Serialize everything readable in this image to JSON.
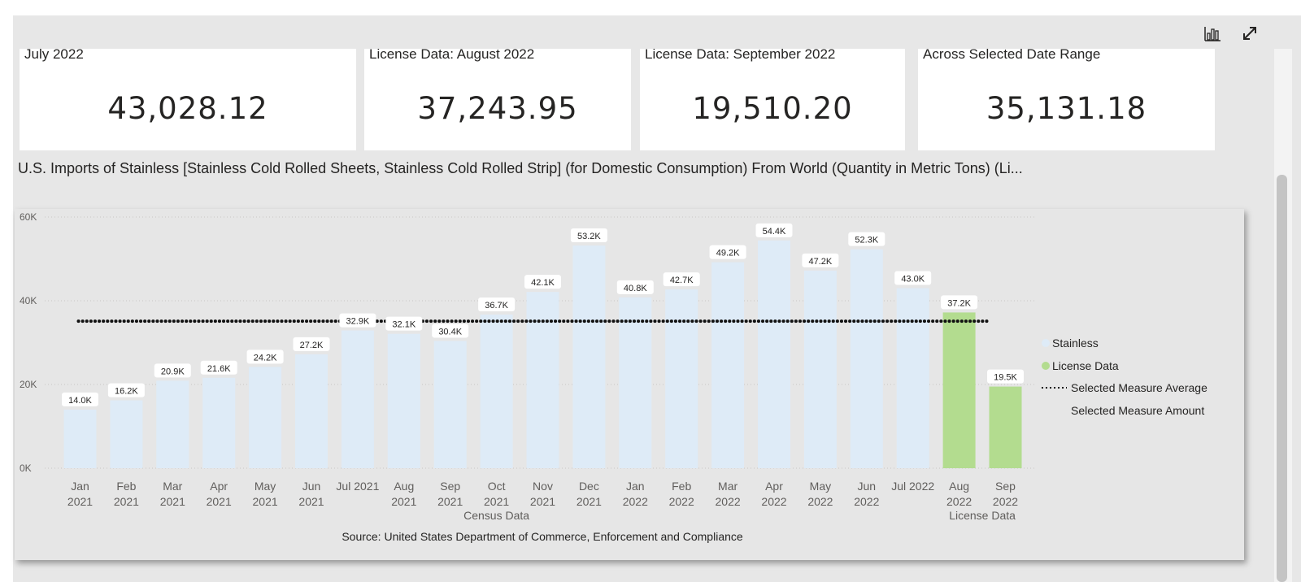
{
  "cards": [
    {
      "title": "July 2022",
      "value": "43,028.12"
    },
    {
      "title": "License Data: August 2022",
      "value": "37,243.95"
    },
    {
      "title": "License Data: September 2022",
      "value": "19,510.20"
    },
    {
      "title": "Across Selected Date Range",
      "value": "35,131.18"
    }
  ],
  "chart_title": "U.S. Imports of Stainless [Stainless Cold Rolled Sheets, Stainless Cold Rolled Strip]  (for Domestic Consumption) From World  (Quantity in Metric Tons) (Li...",
  "toolbar": {
    "icons": [
      "bar-chart-icon",
      "expand-icon"
    ]
  },
  "colors": {
    "stainless": "#deebf7",
    "license": "#b3dc8f",
    "average": "#111111",
    "canvas": "#e7e7e7"
  },
  "chart_data": {
    "type": "bar",
    "categories": [
      [
        "Jan",
        "2021"
      ],
      [
        "Feb",
        "2021"
      ],
      [
        "Mar",
        "2021"
      ],
      [
        "Apr",
        "2021"
      ],
      [
        "May",
        "2021"
      ],
      [
        "Jun",
        "2021"
      ],
      [
        "Jul 2021"
      ],
      [
        "Aug",
        "2021"
      ],
      [
        "Sep",
        "2021"
      ],
      [
        "Oct",
        "2021"
      ],
      [
        "Nov",
        "2021"
      ],
      [
        "Dec",
        "2021"
      ],
      [
        "Jan",
        "2022"
      ],
      [
        "Feb",
        "2022"
      ],
      [
        "Mar",
        "2022"
      ],
      [
        "Apr",
        "2022"
      ],
      [
        "May",
        "2022"
      ],
      [
        "Jun",
        "2022"
      ],
      [
        "Jul 2022"
      ],
      [
        "Aug",
        "2022"
      ],
      [
        "Sep",
        "2022"
      ]
    ],
    "values": [
      14.0,
      16.2,
      20.9,
      21.6,
      24.2,
      27.2,
      32.9,
      32.1,
      30.4,
      36.7,
      42.1,
      53.2,
      40.8,
      42.7,
      49.2,
      54.4,
      47.2,
      52.3,
      43.0,
      37.2,
      19.5
    ],
    "value_unit": "K",
    "data_labels": [
      "14.0K",
      "16.2K",
      "20.9K",
      "21.6K",
      "24.2K",
      "27.2K",
      "32.9K",
      "32.1K",
      "30.4K",
      "36.7K",
      "42.1K",
      "53.2K",
      "40.8K",
      "42.7K",
      "49.2K",
      "54.4K",
      "47.2K",
      "52.3K",
      "43.0K",
      "37.2K",
      "19.5K"
    ],
    "series_type": [
      "Stainless",
      "Stainless",
      "Stainless",
      "Stainless",
      "Stainless",
      "Stainless",
      "Stainless",
      "Stainless",
      "Stainless",
      "Stainless",
      "Stainless",
      "Stainless",
      "Stainless",
      "Stainless",
      "Stainless",
      "Stainless",
      "Stainless",
      "Stainless",
      "Stainless",
      "License Data",
      "License Data"
    ],
    "groups": [
      {
        "label": "Census Data",
        "from": 0,
        "to": 18
      },
      {
        "label": "License Data",
        "from": 19,
        "to": 20
      }
    ],
    "average": 35.13118,
    "y_ticks": [
      {
        "v": 0,
        "label": "0K"
      },
      {
        "v": 20,
        "label": "20K"
      },
      {
        "v": 40,
        "label": "40K"
      },
      {
        "v": 60,
        "label": "60K"
      }
    ],
    "ylim": [
      0,
      60
    ],
    "grid": true,
    "legend": [
      "Stainless",
      "License Data",
      "Selected Measure Average",
      "Selected Measure Amount"
    ],
    "legend_position": "right",
    "source": "Source: United States Department of Commerce, Enforcement and Compliance"
  }
}
